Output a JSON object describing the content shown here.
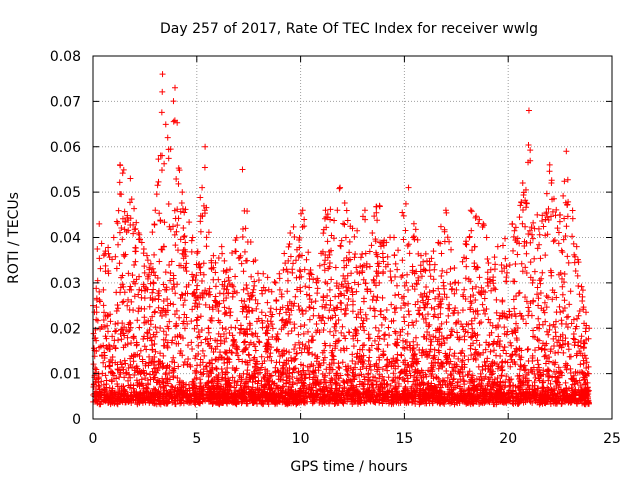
{
  "chart_data": {
    "type": "scatter",
    "title": "Day 257 of 2017, Rate Of TEC Index for receiver wwlg",
    "xlabel": "GPS time / hours",
    "ylabel": "ROTI / TECUs",
    "xlim": [
      0,
      25
    ],
    "ylim": [
      0,
      0.08
    ],
    "grid": true,
    "marker": "+",
    "marker_color": "#ff0000",
    "x_ticks": [
      0,
      5,
      10,
      15,
      20,
      25
    ],
    "x_tick_labels": [
      "0",
      "5",
      "10",
      "15",
      "20",
      "25"
    ],
    "y_ticks": [
      0,
      0.01,
      0.02,
      0.03,
      0.04,
      0.05,
      0.06,
      0.07,
      0.08
    ],
    "y_tick_labels": [
      "0",
      "0.01",
      "0.02",
      "0.03",
      "0.04",
      "0.05",
      "0.06",
      "0.07",
      "0.08"
    ],
    "series": [
      {
        "name": "ROTI",
        "x_range": [
          0,
          23.9
        ],
        "typical_band": [
          0.004,
          0.02
        ],
        "upper_envelope": [
          [
            0.0,
            0.025
          ],
          [
            0.3,
            0.043
          ],
          [
            0.6,
            0.037
          ],
          [
            1.0,
            0.04
          ],
          [
            1.3,
            0.056
          ],
          [
            1.8,
            0.053
          ],
          [
            2.2,
            0.041
          ],
          [
            2.6,
            0.036
          ],
          [
            3.0,
            0.046
          ],
          [
            3.35,
            0.076
          ],
          [
            3.6,
            0.062
          ],
          [
            3.95,
            0.073
          ],
          [
            4.3,
            0.05
          ],
          [
            4.8,
            0.04
          ],
          [
            5.4,
            0.06
          ],
          [
            5.8,
            0.036
          ],
          [
            6.2,
            0.038
          ],
          [
            6.6,
            0.033
          ],
          [
            7.2,
            0.055
          ],
          [
            7.6,
            0.039
          ],
          [
            8.2,
            0.032
          ],
          [
            8.8,
            0.03
          ],
          [
            9.5,
            0.041
          ],
          [
            10.1,
            0.046
          ],
          [
            10.8,
            0.031
          ],
          [
            11.2,
            0.046
          ],
          [
            11.9,
            0.051
          ],
          [
            12.5,
            0.042
          ],
          [
            13.1,
            0.046
          ],
          [
            13.8,
            0.047
          ],
          [
            14.5,
            0.04
          ],
          [
            15.2,
            0.051
          ],
          [
            15.8,
            0.036
          ],
          [
            16.4,
            0.037
          ],
          [
            17.0,
            0.046
          ],
          [
            17.6,
            0.03
          ],
          [
            18.2,
            0.046
          ],
          [
            18.8,
            0.043
          ],
          [
            19.5,
            0.038
          ],
          [
            20.2,
            0.043
          ],
          [
            20.7,
            0.052
          ],
          [
            21.0,
            0.068
          ],
          [
            21.4,
            0.045
          ],
          [
            22.0,
            0.056
          ],
          [
            22.5,
            0.045
          ],
          [
            22.8,
            0.059
          ],
          [
            23.3,
            0.038
          ],
          [
            23.9,
            0.02
          ]
        ]
      }
    ]
  }
}
